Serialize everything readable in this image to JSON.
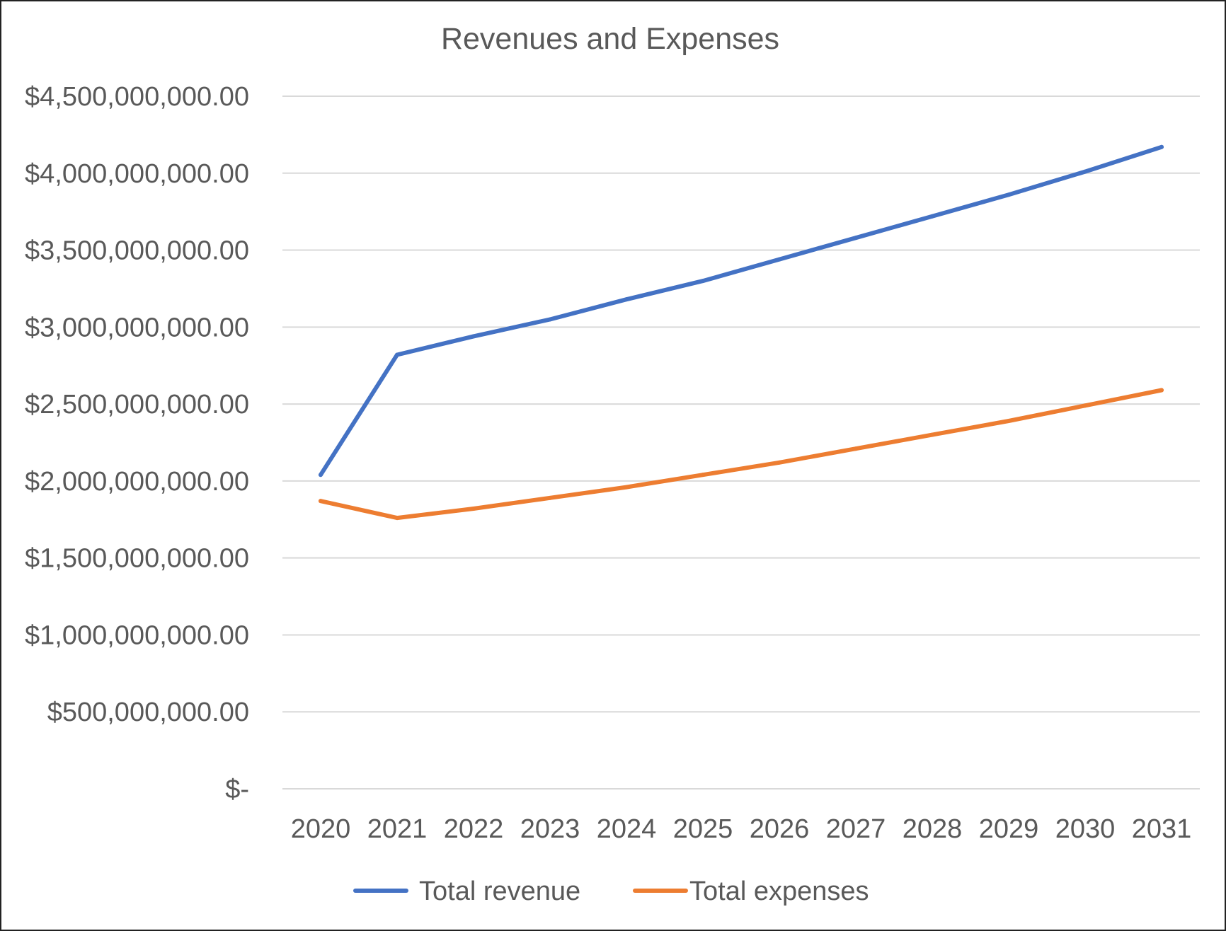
{
  "chart_data": {
    "type": "line",
    "title": "Revenues and Expenses",
    "xlabel": "",
    "ylabel": "",
    "categories": [
      "2020",
      "2021",
      "2022",
      "2023",
      "2024",
      "2025",
      "2026",
      "2027",
      "2028",
      "2029",
      "2030",
      "2031"
    ],
    "ylim": [
      0,
      4500000000
    ],
    "y_ticks": [
      0,
      500000000,
      1000000000,
      1500000000,
      2000000000,
      2500000000,
      3000000000,
      3500000000,
      4000000000,
      4500000000
    ],
    "y_tick_labels": [
      "$-",
      "$500,000,000.00",
      "$1,000,000,000.00",
      "$1,500,000,000.00",
      "$2,000,000,000.00",
      "$2,500,000,000.00",
      "$3,000,000,000.00",
      "$3,500,000,000.00",
      "$4,000,000,000.00",
      "$4,500,000,000.00"
    ],
    "grid": true,
    "legend_position": "bottom",
    "series": [
      {
        "name": "Total revenue",
        "color": "#4472C4",
        "values": [
          2040000000,
          2820000000,
          2940000000,
          3050000000,
          3180000000,
          3300000000,
          3440000000,
          3580000000,
          3720000000,
          3860000000,
          4010000000,
          4170000000
        ]
      },
      {
        "name": "Total expenses",
        "color": "#ED7D31",
        "values": [
          1870000000,
          1760000000,
          1820000000,
          1890000000,
          1960000000,
          2040000000,
          2120000000,
          2210000000,
          2300000000,
          2390000000,
          2490000000,
          2590000000
        ]
      }
    ]
  }
}
